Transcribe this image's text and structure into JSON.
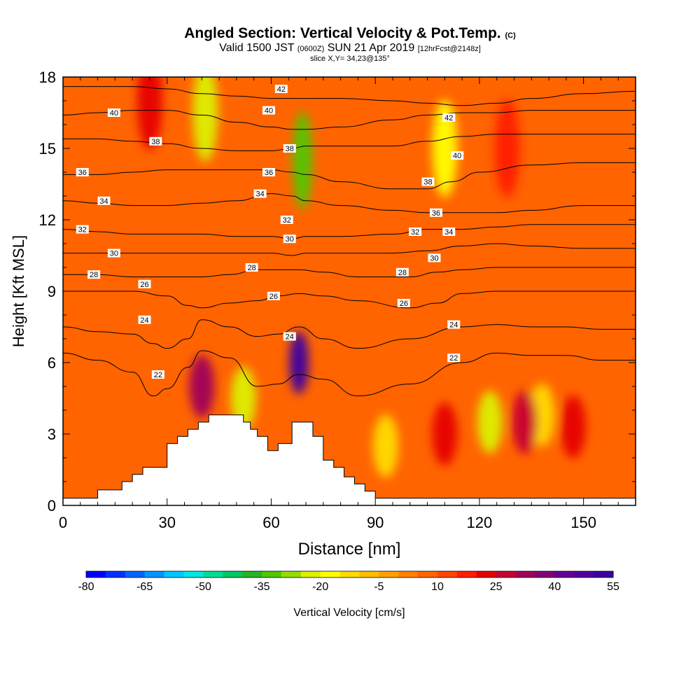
{
  "header": {
    "title": "Angled Section: Vertical Velocity & Pot.Temp.",
    "title_mark": "(C)",
    "valid_prefix": "Valid 1500 JST",
    "valid_z": "(0600Z)",
    "valid_date": "SUN 21 Apr 2019",
    "forecast": "[12hrFcst@2148z]",
    "slice": "slice X,Y= 34,23@135°"
  },
  "chart_data": {
    "type": "heatmap",
    "xlabel": "Distance [nm]",
    "ylabel": "Height [Kft MSL]",
    "xlim": [
      0,
      165
    ],
    "ylim": [
      0,
      18
    ],
    "x_ticks": [
      0,
      30,
      60,
      90,
      120,
      150
    ],
    "y_ticks": [
      0,
      3,
      6,
      9,
      12,
      15,
      18
    ],
    "grid": false,
    "colorbar": {
      "label": "Vertical Velocity [cm/s]",
      "range": [
        -80,
        55
      ],
      "step": 5,
      "tick_labels": [
        "-80",
        "-65",
        "-50",
        "-35",
        "-20",
        "-5",
        "10",
        "25",
        "40",
        "55"
      ],
      "colors": [
        "#0000ff",
        "#0032ff",
        "#0064ff",
        "#0096ff",
        "#00c8ff",
        "#00e6e6",
        "#00dc96",
        "#00c864",
        "#28b428",
        "#50c800",
        "#96dc00",
        "#dcf000",
        "#ffff00",
        "#ffdc00",
        "#ffbe00",
        "#ffa000",
        "#ff8200",
        "#ff6400",
        "#ff4600",
        "#ff1e00",
        "#e60000",
        "#c80032",
        "#a0005a",
        "#820078",
        "#640096",
        "#50009b",
        "#3c00a0"
      ]
    },
    "terrain": {
      "x": [
        0,
        10,
        10,
        17,
        17,
        20,
        20,
        23,
        23,
        30,
        30,
        30,
        30,
        33,
        33,
        36,
        36,
        39,
        39,
        42,
        42,
        44,
        44,
        52,
        52,
        54,
        54,
        56,
        56,
        59,
        59,
        62,
        62,
        66,
        66,
        72,
        72,
        75,
        75,
        78,
        78,
        81,
        81,
        84,
        84,
        87,
        87,
        90,
        90
      ],
      "y": [
        0.3,
        0.3,
        0.65,
        0.65,
        1.0,
        1.0,
        1.3,
        1.3,
        1.6,
        1.6,
        2.0,
        2.3,
        2.6,
        2.6,
        2.9,
        2.9,
        3.2,
        3.2,
        3.5,
        3.5,
        3.8,
        3.8,
        3.8,
        3.8,
        3.5,
        3.5,
        3.2,
        3.2,
        2.9,
        2.9,
        2.3,
        2.3,
        2.6,
        2.6,
        3.5,
        3.5,
        2.9,
        2.9,
        1.9,
        1.9,
        1.6,
        1.6,
        1.2,
        1.2,
        0.9,
        0.9,
        0.6,
        0.6,
        0.3
      ]
    },
    "velocity_features": [
      {
        "x": 40,
        "y": 5.0,
        "value": 30
      },
      {
        "x": 68,
        "y": 6.0,
        "value": 50
      },
      {
        "x": 52,
        "y": 4.5,
        "value": -25
      },
      {
        "x": 69,
        "y": 14.5,
        "value": -35
      },
      {
        "x": 41,
        "y": 16.5,
        "value": -25
      },
      {
        "x": 110,
        "y": 15.0,
        "value": -20
      },
      {
        "x": 123,
        "y": 3.5,
        "value": -25
      },
      {
        "x": 138,
        "y": 3.8,
        "value": -15
      },
      {
        "x": 93,
        "y": 2.5,
        "value": -15
      },
      {
        "x": 133,
        "y": 3.5,
        "value": 25
      },
      {
        "x": 147,
        "y": 3.3,
        "value": 22
      },
      {
        "x": 110,
        "y": 3.0,
        "value": 20
      },
      {
        "x": 25,
        "y": 17.0,
        "value": 20
      },
      {
        "x": 128,
        "y": 15.0,
        "value": 18
      }
    ],
    "isentropes": [
      {
        "theta": 22,
        "label": "22",
        "x": [
          0,
          10,
          20,
          26,
          30,
          36,
          40,
          48,
          56,
          62,
          68,
          75,
          85,
          100,
          115,
          125,
          135,
          145,
          155,
          165
        ],
        "y": [
          6.4,
          6.1,
          5.6,
          4.6,
          4.9,
          5.8,
          6.5,
          6.2,
          5.0,
          5.1,
          5.5,
          5.3,
          4.6,
          5.1,
          6.0,
          6.4,
          6.3,
          6.3,
          6.1,
          6.1
        ]
      },
      {
        "theta": 24,
        "label": "24",
        "x": [
          0,
          10,
          20,
          26,
          30,
          36,
          40,
          48,
          56,
          62,
          68,
          75,
          85,
          100,
          115,
          125,
          135,
          145,
          155,
          165
        ],
        "y": [
          7.5,
          7.3,
          7.2,
          6.8,
          6.6,
          7.0,
          7.8,
          7.5,
          7.1,
          7.2,
          7.5,
          7.0,
          6.6,
          7.0,
          7.5,
          7.6,
          7.5,
          7.5,
          7.4,
          7.4
        ]
      },
      {
        "theta": 26,
        "label": "26",
        "x": [
          0,
          10,
          20,
          30,
          36,
          40,
          48,
          56,
          62,
          68,
          75,
          85,
          100,
          108,
          115,
          125,
          135,
          145,
          155,
          165
        ],
        "y": [
          9.0,
          9.0,
          9.0,
          8.8,
          8.4,
          8.3,
          8.5,
          8.6,
          8.8,
          8.9,
          8.8,
          8.6,
          8.3,
          8.5,
          8.9,
          9.0,
          9.0,
          9.0,
          9.0,
          9.0
        ]
      },
      {
        "theta": 28,
        "label": "28",
        "x": [
          0,
          10,
          20,
          30,
          40,
          48,
          56,
          62,
          68,
          75,
          85,
          100,
          108,
          115,
          125,
          135,
          145,
          155,
          165
        ],
        "y": [
          9.7,
          9.7,
          9.6,
          9.6,
          9.6,
          9.7,
          9.9,
          9.9,
          9.9,
          9.8,
          9.6,
          9.6,
          9.8,
          9.9,
          10.0,
          10.0,
          10.0,
          10.0,
          10.0
        ]
      },
      {
        "theta": 30,
        "label": "30",
        "x": [
          0,
          10,
          20,
          30,
          40,
          50,
          60,
          66,
          70,
          80,
          95,
          105,
          115,
          125,
          135,
          150,
          165
        ],
        "y": [
          10.6,
          10.6,
          10.6,
          10.6,
          10.6,
          10.6,
          10.6,
          10.5,
          10.6,
          10.6,
          10.6,
          10.7,
          10.9,
          11.0,
          10.9,
          10.8,
          10.8
        ]
      },
      {
        "theta": 32,
        "label": "32",
        "x": [
          0,
          10,
          20,
          30,
          40,
          50,
          60,
          66,
          70,
          80,
          95,
          105,
          115,
          125,
          135,
          150,
          165
        ],
        "y": [
          11.6,
          11.5,
          11.4,
          11.4,
          11.4,
          11.3,
          11.3,
          11.2,
          11.3,
          11.3,
          11.4,
          11.6,
          11.6,
          11.7,
          11.8,
          11.8,
          11.8
        ]
      },
      {
        "theta": 34,
        "label": "34",
        "x": [
          0,
          10,
          20,
          30,
          40,
          50,
          60,
          66,
          70,
          80,
          95,
          105,
          115,
          125,
          135,
          150,
          165
        ],
        "y": [
          12.8,
          12.7,
          12.6,
          12.6,
          12.7,
          12.8,
          13.1,
          13.0,
          12.8,
          12.6,
          12.4,
          12.3,
          12.3,
          12.3,
          12.4,
          12.6,
          12.6
        ]
      },
      {
        "theta": 36,
        "label": "36",
        "x": [
          0,
          10,
          20,
          30,
          40,
          50,
          60,
          66,
          70,
          80,
          95,
          105,
          112,
          120,
          135,
          150,
          165
        ],
        "y": [
          13.9,
          13.9,
          14.0,
          14.1,
          14.1,
          14.1,
          14.1,
          14.0,
          13.9,
          13.6,
          13.3,
          13.3,
          13.6,
          14.0,
          14.3,
          14.4,
          14.4
        ]
      },
      {
        "theta": 38,
        "label": "38",
        "x": [
          0,
          10,
          20,
          30,
          40,
          50,
          60,
          66,
          70,
          80,
          95,
          105,
          115,
          125,
          135,
          150,
          165
        ],
        "y": [
          15.4,
          15.4,
          15.3,
          15.2,
          15.0,
          14.9,
          14.9,
          15.0,
          15.1,
          15.1,
          15.1,
          15.3,
          15.5,
          15.6,
          15.6,
          15.6,
          15.6
        ]
      },
      {
        "theta": 40,
        "label": "40",
        "x": [
          0,
          10,
          20,
          30,
          40,
          50,
          60,
          66,
          70,
          80,
          95,
          105,
          115,
          125,
          135,
          150,
          165
        ],
        "y": [
          16.4,
          16.5,
          16.6,
          16.6,
          16.4,
          16.1,
          15.9,
          15.8,
          15.8,
          15.9,
          16.2,
          16.4,
          16.5,
          16.5,
          16.6,
          16.6,
          16.6
        ]
      },
      {
        "theta": 42,
        "label": "42",
        "x": [
          0,
          10,
          20,
          30,
          40,
          50,
          60,
          66,
          70,
          80,
          95,
          105,
          115,
          125,
          135,
          150,
          165
        ],
        "y": [
          17.6,
          17.6,
          17.6,
          17.5,
          17.3,
          17.2,
          17.1,
          17.1,
          17.1,
          17.1,
          17.0,
          16.9,
          16.8,
          16.9,
          17.1,
          17.3,
          17.4
        ]
      }
    ],
    "contour_labels": [
      {
        "text": "40",
        "x": 14.7,
        "y": 16.5
      },
      {
        "text": "38",
        "x": 26.7,
        "y": 15.3
      },
      {
        "text": "36",
        "x": 5.6,
        "y": 14.0
      },
      {
        "text": "34",
        "x": 11.8,
        "y": 12.8
      },
      {
        "text": "32",
        "x": 5.6,
        "y": 11.6
      },
      {
        "text": "30",
        "x": 14.7,
        "y": 10.6
      },
      {
        "text": "28",
        "x": 8.9,
        "y": 9.7
      },
      {
        "text": "26",
        "x": 23.5,
        "y": 9.3
      },
      {
        "text": "24",
        "x": 23.5,
        "y": 7.8
      },
      {
        "text": "22",
        "x": 27.4,
        "y": 5.5
      },
      {
        "text": "42",
        "x": 62.9,
        "y": 17.5
      },
      {
        "text": "40",
        "x": 59.3,
        "y": 16.6
      },
      {
        "text": "38",
        "x": 65.3,
        "y": 15.0
      },
      {
        "text": "36",
        "x": 59.3,
        "y": 14.0
      },
      {
        "text": "34",
        "x": 56.8,
        "y": 13.1
      },
      {
        "text": "32",
        "x": 64.5,
        "y": 12.0
      },
      {
        "text": "30",
        "x": 65.3,
        "y": 11.2
      },
      {
        "text": "28",
        "x": 54.4,
        "y": 10.0
      },
      {
        "text": "26",
        "x": 60.7,
        "y": 8.8
      },
      {
        "text": "24",
        "x": 65.3,
        "y": 7.1
      },
      {
        "text": "42",
        "x": 111.2,
        "y": 16.3
      },
      {
        "text": "40",
        "x": 113.6,
        "y": 14.7
      },
      {
        "text": "38",
        "x": 105.2,
        "y": 13.6
      },
      {
        "text": "36",
        "x": 107.5,
        "y": 12.3
      },
      {
        "text": "34",
        "x": 111.2,
        "y": 11.5
      },
      {
        "text": "32",
        "x": 101.5,
        "y": 11.5
      },
      {
        "text": "30",
        "x": 107.0,
        "y": 10.4
      },
      {
        "text": "28",
        "x": 97.8,
        "y": 9.8
      },
      {
        "text": "26",
        "x": 98.2,
        "y": 8.5
      },
      {
        "text": "24",
        "x": 112.6,
        "y": 7.6
      },
      {
        "text": "22",
        "x": 112.6,
        "y": 6.2
      }
    ]
  }
}
